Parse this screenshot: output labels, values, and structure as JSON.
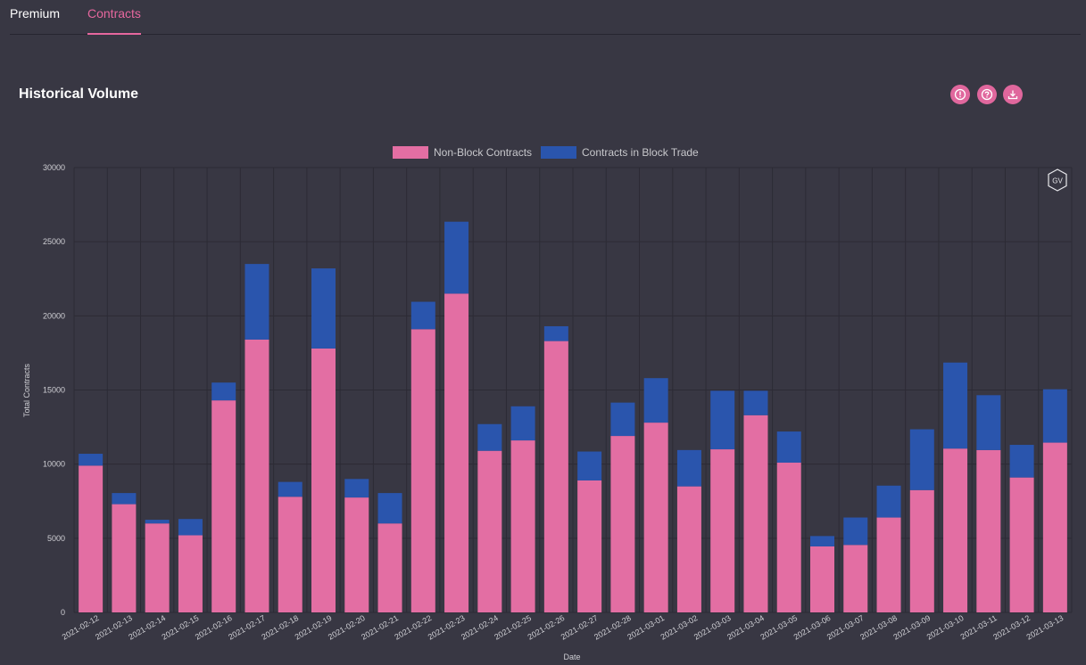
{
  "tabs": [
    {
      "label": "Premium",
      "active": false
    },
    {
      "label": "Contracts",
      "active": true
    }
  ],
  "title": "Historical Volume",
  "icons": [
    "alert-icon",
    "help-icon",
    "download-icon"
  ],
  "watermark": "GV",
  "colors": {
    "non_block": "#e36ea3",
    "block": "#2a55ad",
    "accent": "#e6679e"
  },
  "chart_data": {
    "type": "bar",
    "stacked": true,
    "categories": [
      "2021-02-12",
      "2021-02-13",
      "2021-02-14",
      "2021-02-15",
      "2021-02-16",
      "2021-02-17",
      "2021-02-18",
      "2021-02-19",
      "2021-02-20",
      "2021-02-21",
      "2021-02-22",
      "2021-02-23",
      "2021-02-24",
      "2021-02-25",
      "2021-02-26",
      "2021-02-27",
      "2021-02-28",
      "2021-03-01",
      "2021-03-02",
      "2021-03-03",
      "2021-03-04",
      "2021-03-05",
      "2021-03-06",
      "2021-03-07",
      "2021-03-08",
      "2021-03-09",
      "2021-03-10",
      "2021-03-11",
      "2021-03-12",
      "2021-03-13"
    ],
    "series": [
      {
        "name": "Non-Block Contracts",
        "color": "#e36ea3",
        "values": [
          9900,
          7300,
          6000,
          5200,
          14300,
          18400,
          7800,
          17800,
          7750,
          6000,
          19100,
          21500,
          10900,
          11600,
          18300,
          8900,
          11900,
          12800,
          8500,
          11000,
          13300,
          10100,
          4450,
          4550,
          6400,
          8250,
          11050,
          10950,
          9100,
          11450
        ]
      },
      {
        "name": "Contracts in Block Trade",
        "color": "#2a55ad",
        "values": [
          800,
          750,
          250,
          1100,
          1200,
          5100,
          1000,
          5400,
          1250,
          2050,
          1850,
          4850,
          1800,
          2300,
          1000,
          1950,
          2250,
          3000,
          2450,
          3950,
          1650,
          2100,
          700,
          1850,
          2150,
          4100,
          5800,
          3700,
          2200,
          3600
        ]
      }
    ],
    "xlabel": "Date",
    "ylabel": "Total Contracts",
    "ylim": [
      0,
      30000
    ],
    "yticks": [
      0,
      5000,
      10000,
      15000,
      20000,
      25000,
      30000
    ],
    "grid": true,
    "legend_position": "top"
  }
}
